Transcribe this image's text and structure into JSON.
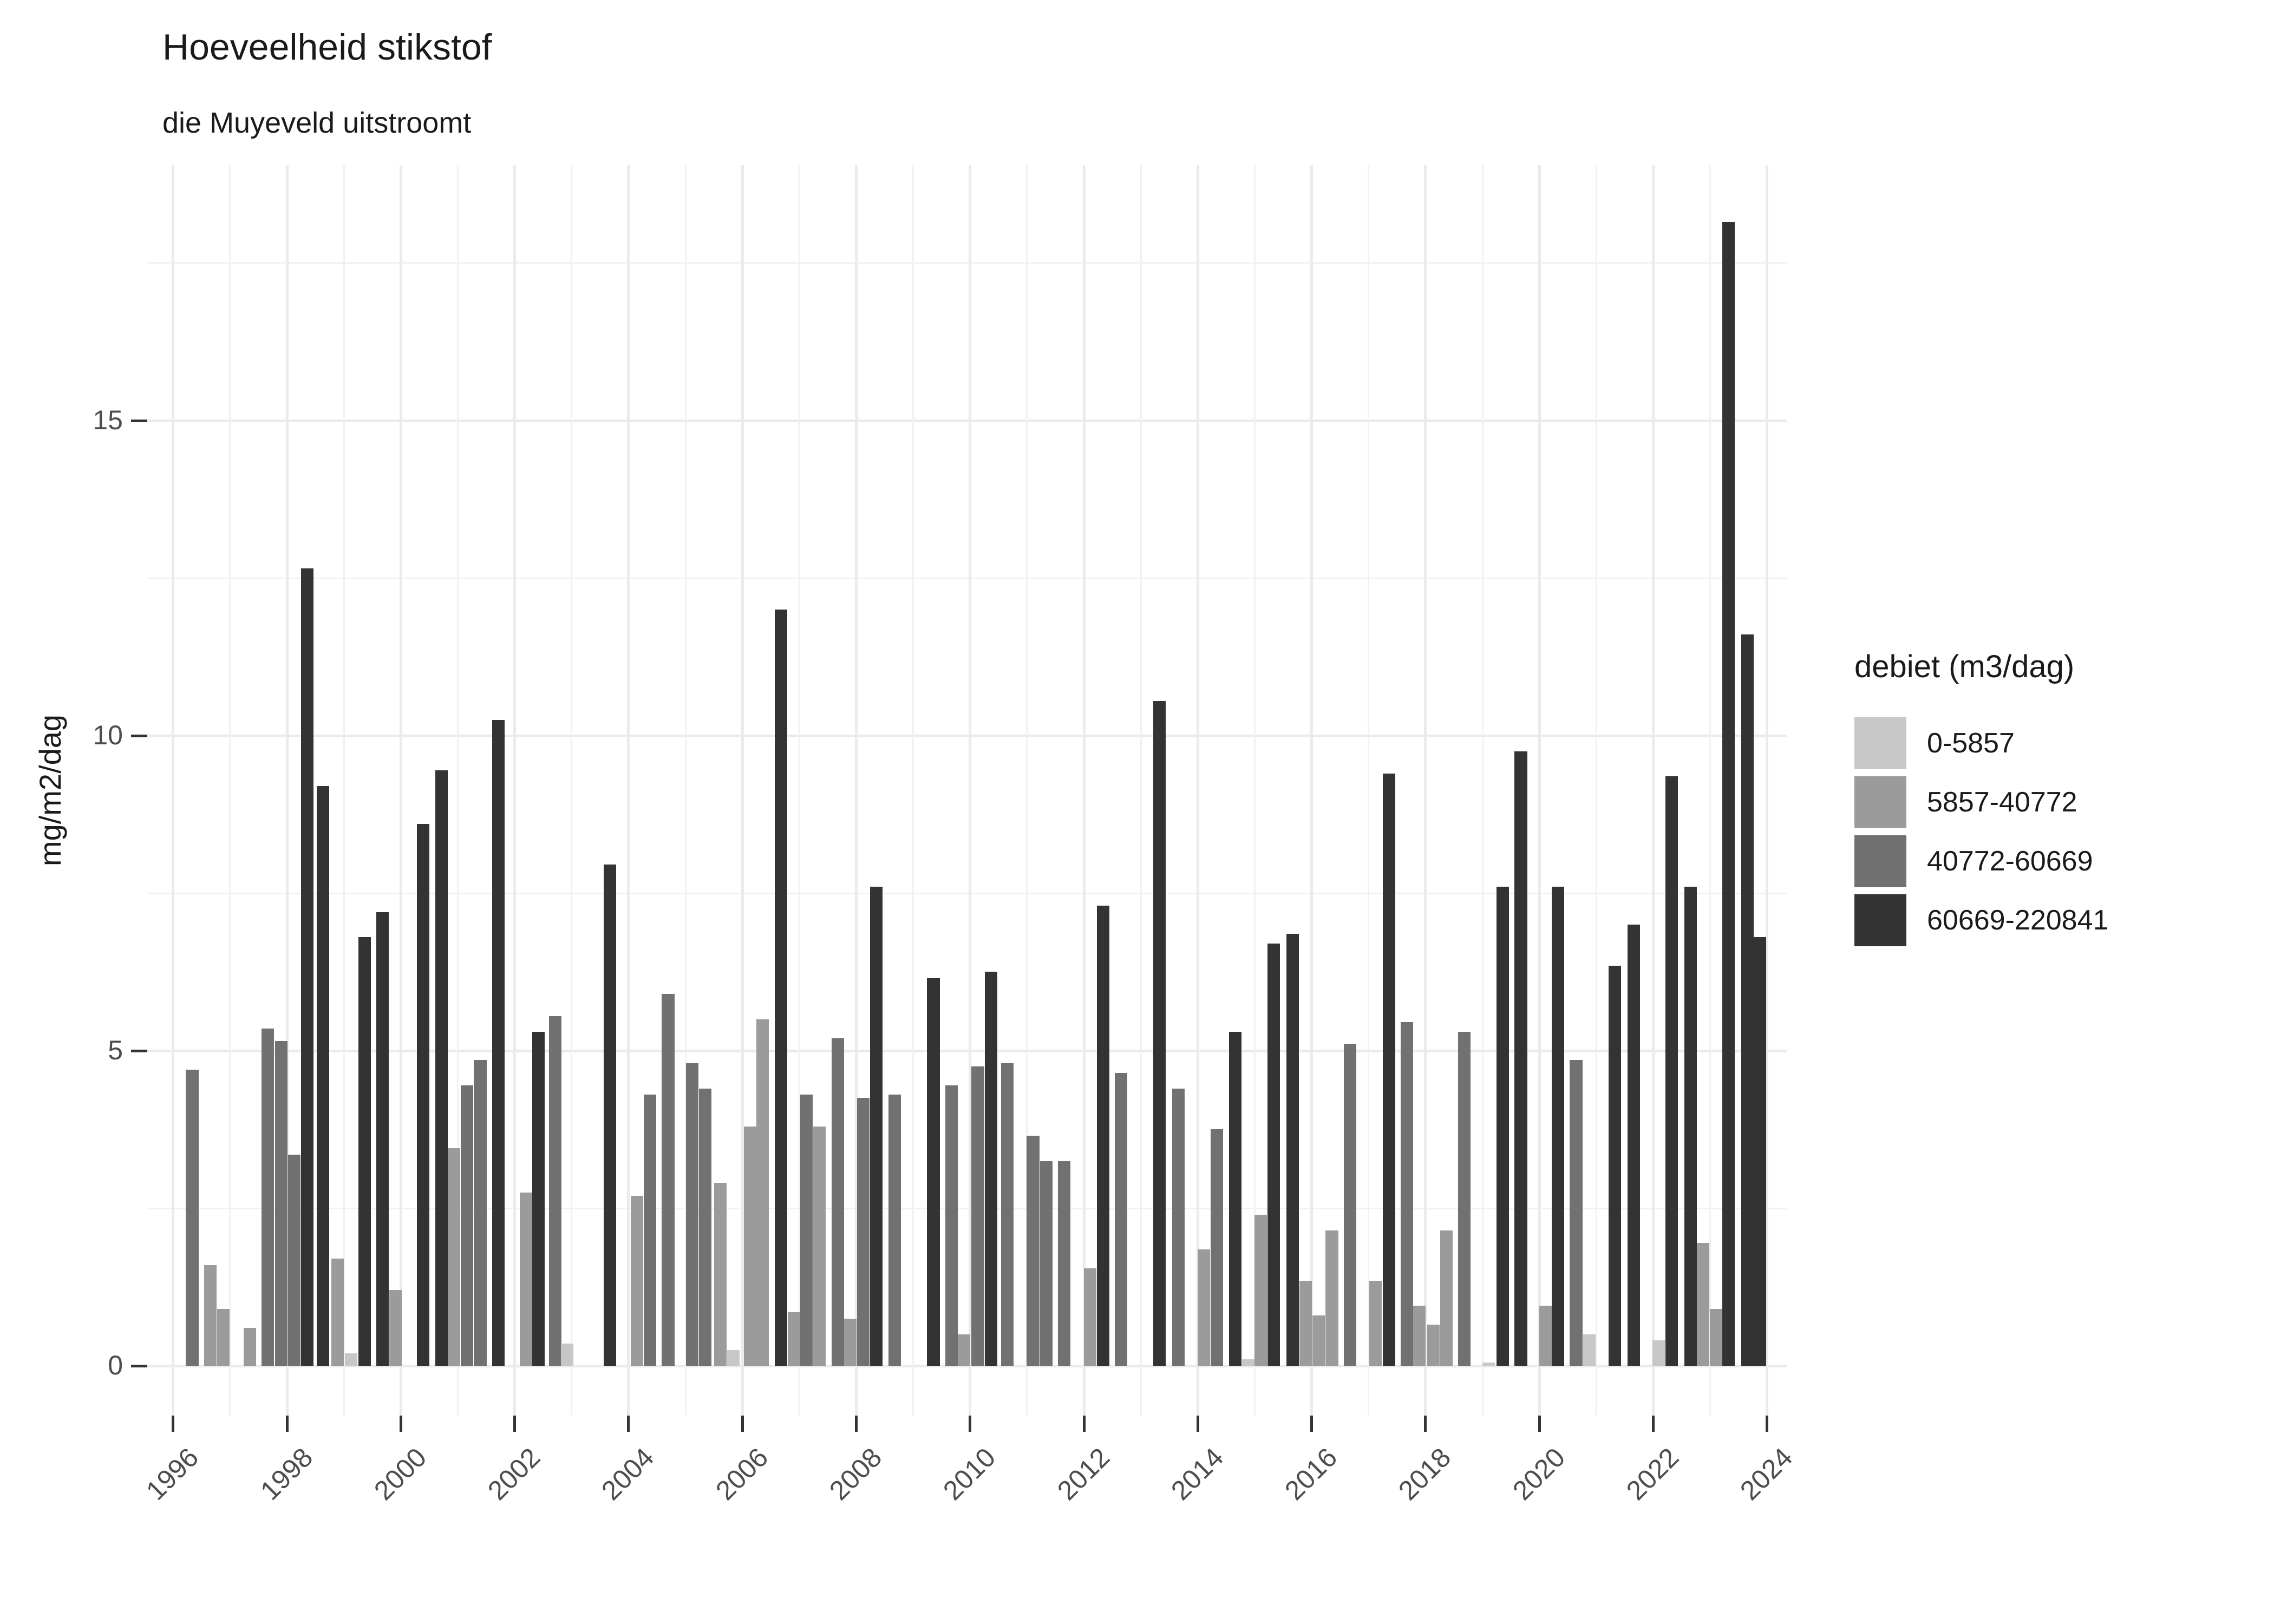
{
  "header": {
    "title": "Hoeveelheid stikstof",
    "subtitle": "die Muyeveld uitstroomt"
  },
  "chart_data": {
    "type": "bar",
    "title": "Hoeveelheid stikstof",
    "subtitle": "die Muyeveld uitstroomt",
    "xlabel": "",
    "ylabel": "mg/m2/dag",
    "x_range": [
      1995.55,
      2024.35
    ],
    "ylim": [
      0,
      19.05
    ],
    "x_ticks": [
      1996,
      1998,
      2000,
      2002,
      2004,
      2006,
      2008,
      2010,
      2012,
      2014,
      2016,
      2018,
      2020,
      2022,
      2024
    ],
    "x_minor_gridlines_every_year": true,
    "y_ticks": [
      0,
      5,
      10,
      15
    ],
    "y_minor_ticks": [
      2.5,
      7.5,
      12.5,
      17.5
    ],
    "grid": "on",
    "bar_width_years": 0.22,
    "legend": {
      "title": "debiet (m3/dag)",
      "position": "right",
      "categories": [
        {
          "label": "0-5857",
          "color": "#c7c7c7"
        },
        {
          "label": "5857-40772",
          "color": "#9b9b9b"
        },
        {
          "label": "40772-60669",
          "color": "#717171"
        },
        {
          "label": "60669-220841",
          "color": "#333333"
        }
      ]
    },
    "bars": [
      {
        "x": 1996.34,
        "v": 4.7,
        "c": 2
      },
      {
        "x": 1996.66,
        "v": 1.6,
        "c": 1
      },
      {
        "x": 1996.89,
        "v": 0.9,
        "c": 1
      },
      {
        "x": 1997.35,
        "v": 0.6,
        "c": 1
      },
      {
        "x": 1997.67,
        "v": 5.35,
        "c": 2
      },
      {
        "x": 1997.9,
        "v": 5.15,
        "c": 2
      },
      {
        "x": 1998.13,
        "v": 3.35,
        "c": 2
      },
      {
        "x": 1998.36,
        "v": 12.65,
        "c": 3
      },
      {
        "x": 1998.64,
        "v": 9.2,
        "c": 3
      },
      {
        "x": 1998.89,
        "v": 1.7,
        "c": 1
      },
      {
        "x": 1999.13,
        "v": 0.2,
        "c": 0
      },
      {
        "x": 1999.37,
        "v": 6.8,
        "c": 3
      },
      {
        "x": 1999.68,
        "v": 7.2,
        "c": 3
      },
      {
        "x": 1999.91,
        "v": 1.2,
        "c": 1
      },
      {
        "x": 2000.4,
        "v": 8.6,
        "c": 3
      },
      {
        "x": 2000.72,
        "v": 9.45,
        "c": 3
      },
      {
        "x": 2000.94,
        "v": 3.45,
        "c": 1
      },
      {
        "x": 2001.17,
        "v": 4.45,
        "c": 2
      },
      {
        "x": 2001.4,
        "v": 4.85,
        "c": 2
      },
      {
        "x": 2001.72,
        "v": 10.25,
        "c": 3
      },
      {
        "x": 2002.2,
        "v": 2.75,
        "c": 1
      },
      {
        "x": 2002.42,
        "v": 5.3,
        "c": 3
      },
      {
        "x": 2002.72,
        "v": 5.55,
        "c": 2
      },
      {
        "x": 2002.93,
        "v": 0.35,
        "c": 0
      },
      {
        "x": 2003.68,
        "v": 7.95,
        "c": 3
      },
      {
        "x": 2004.15,
        "v": 2.7,
        "c": 1
      },
      {
        "x": 2004.38,
        "v": 4.3,
        "c": 2
      },
      {
        "x": 2004.7,
        "v": 5.9,
        "c": 2
      },
      {
        "x": 2005.12,
        "v": 4.8,
        "c": 2
      },
      {
        "x": 2005.35,
        "v": 4.4,
        "c": 2
      },
      {
        "x": 2005.62,
        "v": 2.9,
        "c": 1
      },
      {
        "x": 2005.85,
        "v": 0.25,
        "c": 0
      },
      {
        "x": 2006.14,
        "v": 3.8,
        "c": 1
      },
      {
        "x": 2006.36,
        "v": 5.5,
        "c": 1
      },
      {
        "x": 2006.68,
        "v": 12.0,
        "c": 3
      },
      {
        "x": 2006.91,
        "v": 0.85,
        "c": 1
      },
      {
        "x": 2007.13,
        "v": 4.3,
        "c": 2
      },
      {
        "x": 2007.36,
        "v": 3.8,
        "c": 1
      },
      {
        "x": 2007.68,
        "v": 5.2,
        "c": 2
      },
      {
        "x": 2007.9,
        "v": 0.75,
        "c": 1
      },
      {
        "x": 2008.13,
        "v": 4.25,
        "c": 2
      },
      {
        "x": 2008.36,
        "v": 7.6,
        "c": 3
      },
      {
        "x": 2008.68,
        "v": 4.3,
        "c": 2
      },
      {
        "x": 2009.36,
        "v": 6.15,
        "c": 3
      },
      {
        "x": 2009.68,
        "v": 4.45,
        "c": 2
      },
      {
        "x": 2009.9,
        "v": 0.5,
        "c": 1
      },
      {
        "x": 2010.14,
        "v": 4.75,
        "c": 2
      },
      {
        "x": 2010.37,
        "v": 6.25,
        "c": 3
      },
      {
        "x": 2010.66,
        "v": 4.8,
        "c": 2
      },
      {
        "x": 2011.11,
        "v": 3.65,
        "c": 2
      },
      {
        "x": 2011.34,
        "v": 3.25,
        "c": 2
      },
      {
        "x": 2011.66,
        "v": 3.25,
        "c": 2
      },
      {
        "x": 2012.11,
        "v": 1.55,
        "c": 1
      },
      {
        "x": 2012.34,
        "v": 7.3,
        "c": 3
      },
      {
        "x": 2012.66,
        "v": 4.65,
        "c": 2
      },
      {
        "x": 2013.33,
        "v": 10.55,
        "c": 3
      },
      {
        "x": 2013.66,
        "v": 4.4,
        "c": 2
      },
      {
        "x": 2014.11,
        "v": 1.85,
        "c": 1
      },
      {
        "x": 2014.34,
        "v": 3.75,
        "c": 2
      },
      {
        "x": 2014.66,
        "v": 5.3,
        "c": 3
      },
      {
        "x": 2014.89,
        "v": 0.1,
        "c": 0
      },
      {
        "x": 2015.11,
        "v": 2.4,
        "c": 1
      },
      {
        "x": 2015.34,
        "v": 6.7,
        "c": 3
      },
      {
        "x": 2015.67,
        "v": 6.85,
        "c": 3
      },
      {
        "x": 2015.9,
        "v": 1.35,
        "c": 1
      },
      {
        "x": 2016.13,
        "v": 0.8,
        "c": 1
      },
      {
        "x": 2016.36,
        "v": 2.15,
        "c": 1
      },
      {
        "x": 2016.68,
        "v": 5.1,
        "c": 2
      },
      {
        "x": 2017.13,
        "v": 1.35,
        "c": 1
      },
      {
        "x": 2017.36,
        "v": 9.4,
        "c": 3
      },
      {
        "x": 2017.68,
        "v": 5.45,
        "c": 2
      },
      {
        "x": 2017.9,
        "v": 0.95,
        "c": 1
      },
      {
        "x": 2018.14,
        "v": 0.65,
        "c": 1
      },
      {
        "x": 2018.37,
        "v": 2.15,
        "c": 1
      },
      {
        "x": 2018.69,
        "v": 5.3,
        "c": 2
      },
      {
        "x": 2019.11,
        "v": 0.05,
        "c": 0
      },
      {
        "x": 2019.36,
        "v": 7.6,
        "c": 3
      },
      {
        "x": 2019.68,
        "v": 9.75,
        "c": 3
      },
      {
        "x": 2020.11,
        "v": 0.95,
        "c": 1
      },
      {
        "x": 2020.33,
        "v": 7.6,
        "c": 3
      },
      {
        "x": 2020.65,
        "v": 4.85,
        "c": 2
      },
      {
        "x": 2020.88,
        "v": 0.5,
        "c": 0
      },
      {
        "x": 2021.33,
        "v": 6.35,
        "c": 3
      },
      {
        "x": 2021.66,
        "v": 7.0,
        "c": 3
      },
      {
        "x": 2022.1,
        "v": 0.4,
        "c": 0
      },
      {
        "x": 2022.33,
        "v": 9.35,
        "c": 3
      },
      {
        "x": 2022.66,
        "v": 7.6,
        "c": 3
      },
      {
        "x": 2022.88,
        "v": 1.95,
        "c": 1
      },
      {
        "x": 2023.11,
        "v": 0.9,
        "c": 1
      },
      {
        "x": 2023.33,
        "v": 18.15,
        "c": 3
      },
      {
        "x": 2023.66,
        "v": 11.6,
        "c": 3
      },
      {
        "x": 2023.88,
        "v": 6.8,
        "c": 3
      }
    ]
  },
  "style": {
    "grid_major_color": "#ebebeb",
    "grid_minor_color": "#f1f1f1",
    "tick_color": "#333333",
    "tick_label_color": "#4d4d4d",
    "text_color": "#1a1a1a",
    "background": "#ffffff"
  }
}
